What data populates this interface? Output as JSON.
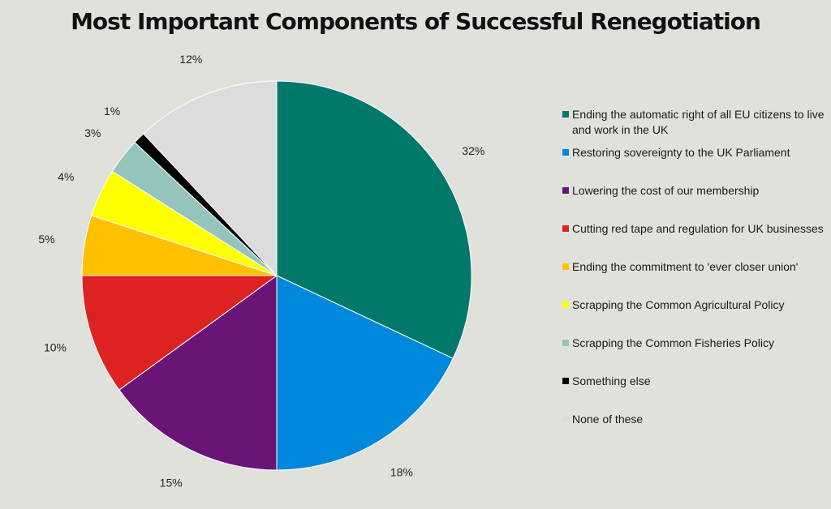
{
  "chart_data": {
    "type": "pie",
    "title": "Most Important Components of Successful Renegotiation",
    "categories": [
      "Ending the automatic right of all EU citizens to live and work in the UK",
      "Restoring sovereignty to the UK Parliament",
      "Lowering the cost of our membership",
      "Cutting red tape and regulation for UK businesses",
      "Ending the commitment to 'ever closer union'",
      "Scrapping the Common Agricultural Policy",
      "Scrapping the Common Fisheries Policy",
      "Something else",
      "None of these"
    ],
    "values": [
      32,
      18,
      15,
      10,
      5,
      4,
      3,
      1,
      12
    ],
    "labels": [
      "32%",
      "18%",
      "15%",
      "10%",
      "5%",
      "4%",
      "3%",
      "1%",
      "12%"
    ],
    "colors": [
      "#00796b",
      "#0088dd",
      "#6b1478",
      "#dd2222",
      "#ffc000",
      "#ffff00",
      "#95c4bc",
      "#000000",
      "#dcdcdc"
    ],
    "legend_position": "right"
  }
}
